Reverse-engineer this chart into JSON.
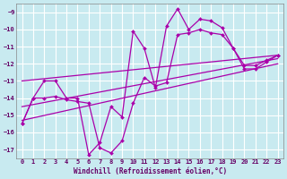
{
  "xlabel": "Windchill (Refroidissement éolien,°C)",
  "bg_color": "#c8eaf0",
  "grid_color": "#ffffff",
  "line_color": "#aa00aa",
  "xlim": [
    -0.5,
    23.5
  ],
  "ylim": [
    -17.5,
    -8.5
  ],
  "yticks": [
    -17,
    -16,
    -15,
    -14,
    -13,
    -12,
    -11,
    -10,
    -9
  ],
  "xticks": [
    0,
    1,
    2,
    3,
    4,
    5,
    6,
    7,
    8,
    9,
    10,
    11,
    12,
    13,
    14,
    15,
    16,
    17,
    18,
    19,
    20,
    21,
    22,
    23
  ],
  "line1_x": [
    0,
    1,
    2,
    3,
    4,
    5,
    6,
    7,
    8,
    9,
    10,
    11,
    12,
    13,
    14,
    15,
    16,
    17,
    18,
    19,
    20,
    21,
    22,
    23
  ],
  "line1_y": [
    -15.5,
    -14.0,
    -13.0,
    -13.0,
    -14.0,
    -14.0,
    -17.3,
    -16.6,
    -14.5,
    -15.1,
    -10.1,
    -11.1,
    -13.4,
    -9.8,
    -8.8,
    -10.0,
    -9.4,
    -9.5,
    -9.9,
    -11.1,
    -12.1,
    -12.1,
    -11.8,
    -11.5
  ],
  "line2_x": [
    0,
    1,
    2,
    3,
    4,
    5,
    6,
    7,
    8,
    9,
    10,
    11,
    12,
    13,
    14,
    15,
    16,
    17,
    18,
    19,
    20,
    21,
    22,
    23
  ],
  "line2_y": [
    -15.5,
    -14.0,
    -14.0,
    -13.9,
    -14.1,
    -14.2,
    -14.3,
    -16.9,
    -17.2,
    -16.5,
    -14.3,
    -12.8,
    -13.3,
    -13.1,
    -10.3,
    -10.2,
    -10.0,
    -10.2,
    -10.3,
    -11.1,
    -12.3,
    -12.3,
    -11.9,
    -11.5
  ],
  "line3_x": [
    0,
    23
  ],
  "line3_y": [
    -14.5,
    -11.7
  ],
  "line4_x": [
    0,
    23
  ],
  "line4_y": [
    -13.0,
    -11.5
  ],
  "line5_x": [
    0,
    23
  ],
  "line5_y": [
    -15.3,
    -12.0
  ]
}
